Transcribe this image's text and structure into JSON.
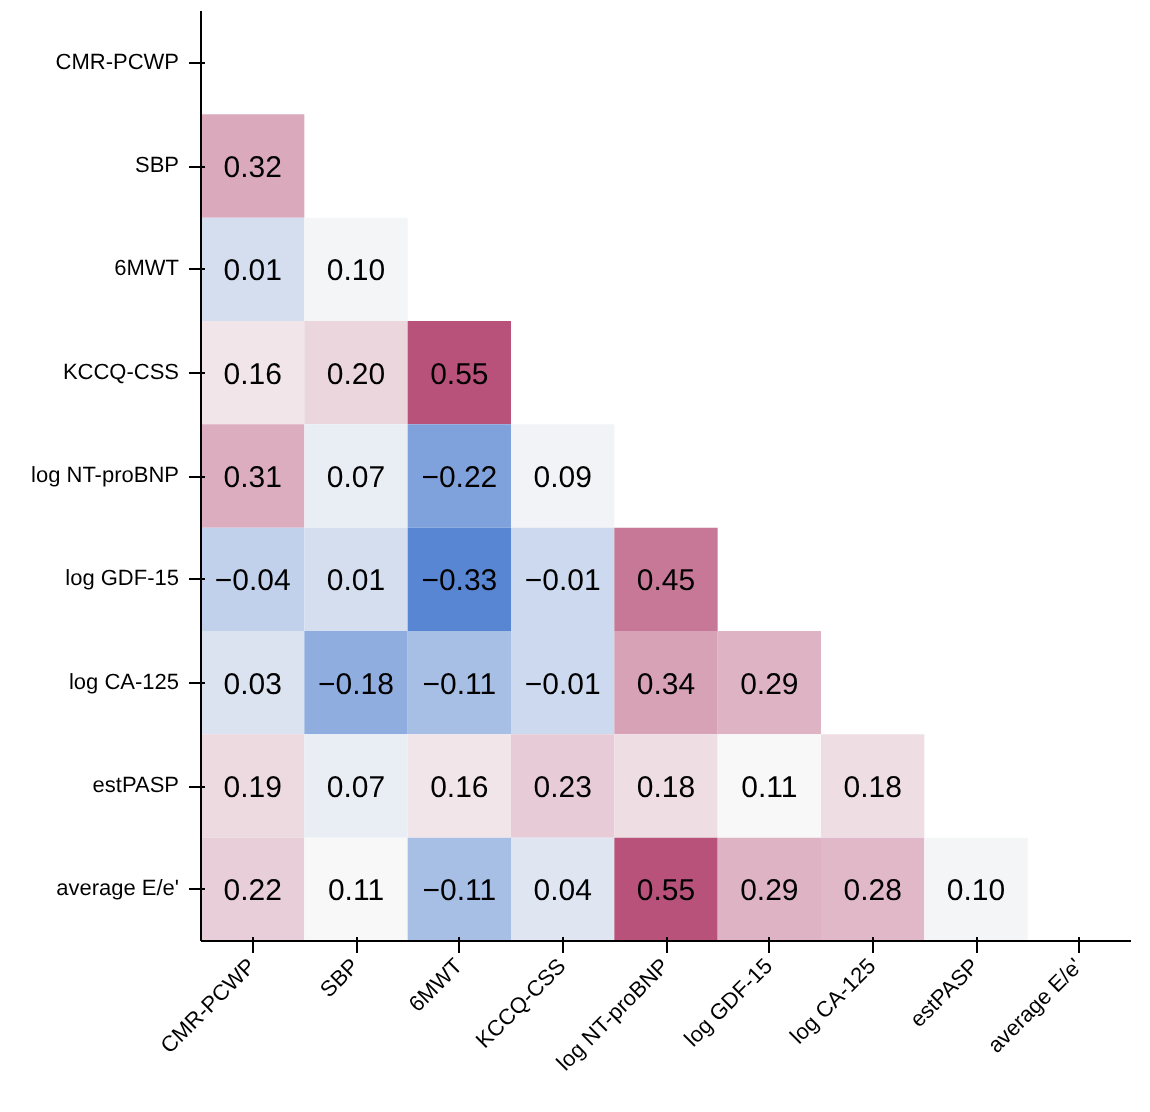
{
  "chart_data": {
    "type": "heatmap",
    "categories": [
      "CMR-PCWP",
      "SBP",
      "6MWT",
      "KCCQ-CSS",
      "log NT-proBNP",
      "log GDF-15",
      "log CA-125",
      "estPASP",
      "average E/e'"
    ],
    "y_categories": [
      "CMR-PCWP",
      "SBP",
      "6MWT",
      "KCCQ-CSS",
      "log NT-proBNP",
      "log GDF-15",
      "log CA-125",
      "estPASP",
      "average E/e'"
    ],
    "cells": [
      [
        null,
        null,
        null,
        null,
        null,
        null,
        null,
        null,
        null
      ],
      [
        0.32,
        null,
        null,
        null,
        null,
        null,
        null,
        null,
        null
      ],
      [
        0.01,
        0.1,
        null,
        null,
        null,
        null,
        null,
        null,
        null
      ],
      [
        0.16,
        0.2,
        0.55,
        null,
        null,
        null,
        null,
        null,
        null
      ],
      [
        0.31,
        0.07,
        -0.22,
        0.09,
        null,
        null,
        null,
        null,
        null
      ],
      [
        -0.04,
        0.01,
        -0.33,
        -0.01,
        0.45,
        null,
        null,
        null,
        null
      ],
      [
        0.03,
        -0.18,
        -0.11,
        -0.01,
        0.34,
        0.29,
        null,
        null,
        null
      ],
      [
        0.19,
        0.07,
        0.16,
        0.23,
        0.18,
        0.11,
        0.18,
        null,
        null
      ],
      [
        0.22,
        0.11,
        -0.11,
        0.04,
        0.55,
        0.29,
        0.28,
        0.1,
        null
      ]
    ],
    "cell_labels": [
      [
        null,
        null,
        null,
        null,
        null,
        null,
        null,
        null,
        null
      ],
      [
        "0.32",
        null,
        null,
        null,
        null,
        null,
        null,
        null,
        null
      ],
      [
        "0.01",
        "0.10",
        null,
        null,
        null,
        null,
        null,
        null,
        null
      ],
      [
        "0.16",
        "0.20",
        "0.55",
        null,
        null,
        null,
        null,
        null,
        null
      ],
      [
        "0.31",
        "0.07",
        "−0.22",
        "0.09",
        null,
        null,
        null,
        null,
        null
      ],
      [
        "−0.04",
        "0.01",
        "−0.33",
        "−0.01",
        "0.45",
        null,
        null,
        null,
        null
      ],
      [
        "0.03",
        "−0.18",
        "−0.11",
        "−0.01",
        "0.34",
        "0.29",
        null,
        null,
        null
      ],
      [
        "0.19",
        "0.07",
        "0.16",
        "0.23",
        "0.18",
        "0.11",
        "0.18",
        null,
        null
      ],
      [
        "0.22",
        "0.11",
        "−0.11",
        "0.04",
        "0.55",
        "0.29",
        "0.28",
        "0.10",
        null
      ]
    ]
  }
}
